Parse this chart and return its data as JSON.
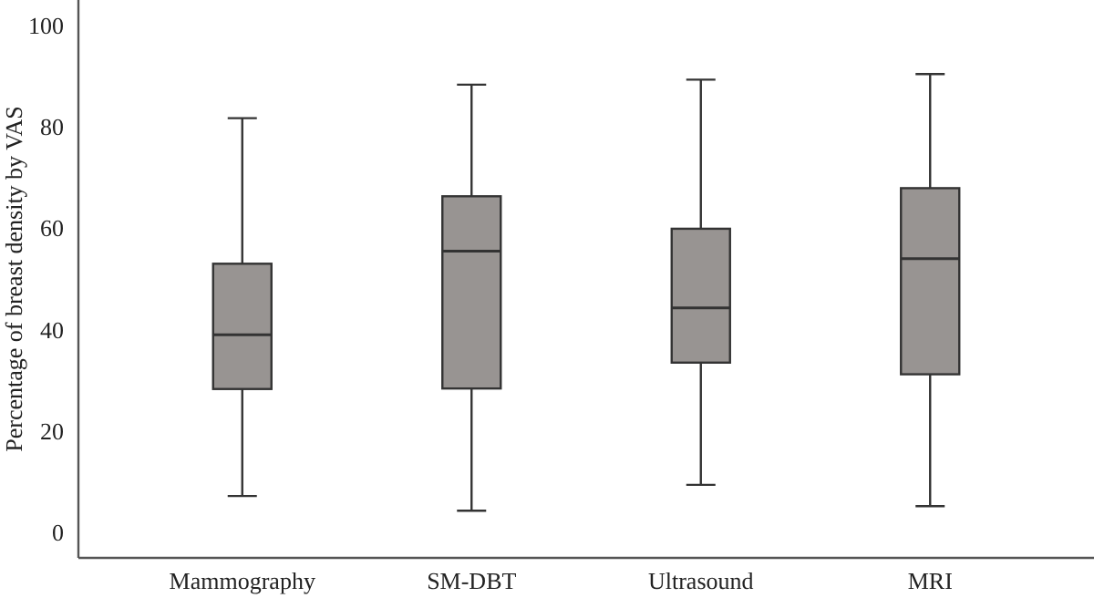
{
  "chart_data": {
    "type": "box",
    "ylabel": "Percentage of breast density by VAS",
    "categories": [
      "Mammography",
      "SM-DBT",
      "Ultrasound",
      "MRI"
    ],
    "color": "#989492",
    "ylim": [
      -5,
      105
    ],
    "yticks": [
      0,
      20,
      40,
      60,
      80,
      100
    ],
    "grid": false,
    "boxes": [
      {
        "low": 7.2,
        "q1": 28.3,
        "median": 39,
        "q3": 53,
        "high": 81.7
      },
      {
        "low": 4.3,
        "q1": 28.4,
        "median": 55.5,
        "q3": 66.3,
        "high": 88.3
      },
      {
        "low": 9.4,
        "q1": 33.5,
        "median": 44.3,
        "q3": 59.9,
        "high": 89.3
      },
      {
        "low": 5.2,
        "q1": 31.2,
        "median": 54,
        "q3": 67.9,
        "high": 90.4
      }
    ]
  }
}
